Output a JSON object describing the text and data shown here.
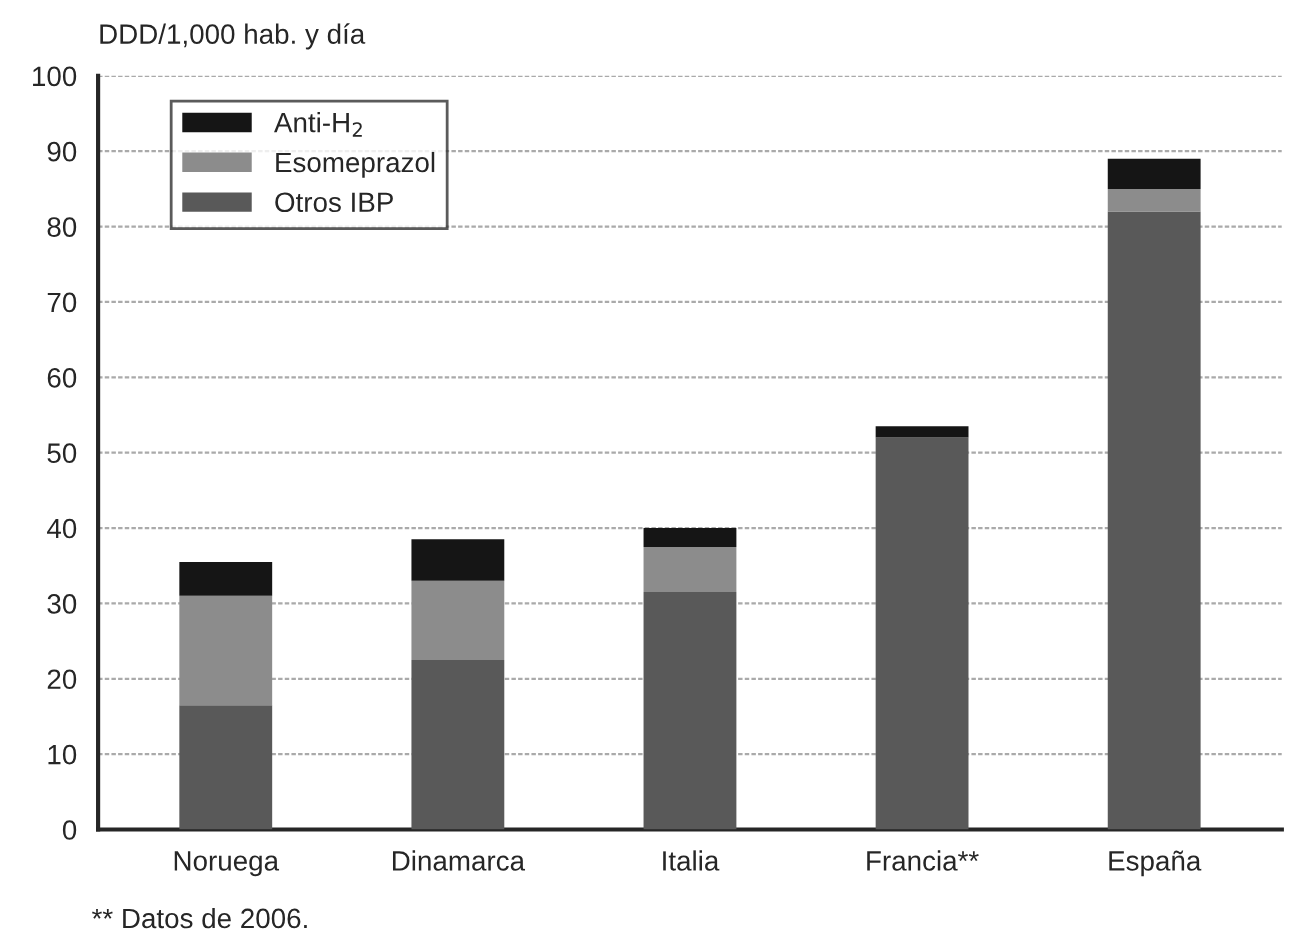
{
  "chart_data": {
    "type": "bar",
    "stacked": true,
    "ylabel": "DDD/1,000 hab. y día",
    "categories": [
      "Noruega",
      "Dinamarca",
      "Italia",
      "Francia**",
      "España"
    ],
    "series": [
      {
        "name": "Otros IBP",
        "color": "#595959",
        "values": [
          16.5,
          22.5,
          31.5,
          52,
          82
        ]
      },
      {
        "name": "Esomeprazol",
        "color": "#8c8c8c",
        "values": [
          14.5,
          10.5,
          6,
          0,
          3
        ]
      },
      {
        "name": "Anti-H$_{2}$",
        "color": "#151515",
        "values": [
          4.5,
          5.5,
          2.5,
          1.5,
          4
        ]
      }
    ],
    "ylim": [
      0,
      100
    ],
    "yticks": [
      0,
      10,
      20,
      30,
      40,
      50,
      60,
      70,
      80,
      90,
      100
    ],
    "grid": "y",
    "legend": "top left",
    "annotations": [
      "** Datos de 2006."
    ]
  }
}
